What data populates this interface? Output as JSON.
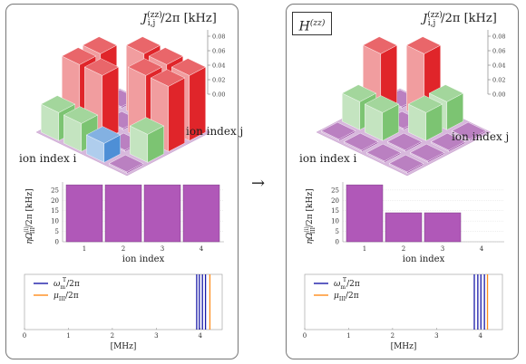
{
  "zz_label": "J",
  "zz_sub": "i,j",
  "zz_sup": "(zz)",
  "zz_unit": "/2π [kHz]",
  "hamiltonian_base": "H",
  "hamiltonian_sup": "(zz)",
  "ion_i_label": "ion index i",
  "ion_j_label": "ion index j",
  "z_ticks": [
    "0.08",
    "0.06",
    "0.04",
    "0.02",
    "0.00"
  ],
  "arrow": "→",
  "colors": {
    "bar": "#b058b8",
    "red": "#e0252a",
    "green": "#7cc472",
    "blue": "#4e8fd6",
    "purple": "#9c4aa6",
    "omega": "#1a1aa8",
    "mu": "#ff8c1a"
  },
  "rabi_ylabel_base": "ηΩ",
  "rabi_ylabel_sup": "(i)",
  "rabi_ylabel_sub": "III",
  "rabi_ylabel_rest": "/2π [kHz]",
  "rabi_yticks": [
    "25",
    "20",
    "15",
    "10",
    "5",
    "0"
  ],
  "rabi_xlabel": "ion index",
  "left_rabi": {
    "chart_data": {
      "type": "bar",
      "categories": [
        "1",
        "2",
        "3",
        "4"
      ],
      "values": [
        27.5,
        27.5,
        27.5,
        27.5
      ],
      "ylim": [
        0,
        28
      ],
      "ylabel": "ηΩ(i)III/2π [kHz]",
      "xlabel": "ion index"
    }
  },
  "right_rabi": {
    "chart_data": {
      "type": "bar",
      "categories": [
        "1",
        "2",
        "3",
        "4"
      ],
      "values": [
        27.5,
        14,
        14,
        0
      ],
      "ylim": [
        0,
        28
      ],
      "ylabel": "ηΩ(i)III/2π [kHz]",
      "xlabel": "ion index"
    }
  },
  "freq_legend_omega_base": "ω",
  "freq_legend_omega_sub": "m",
  "freq_legend_omega_sup": "T",
  "freq_legend_omega_rest": "/2π",
  "freq_legend_mu_base": "μ",
  "freq_legend_mu_sub": "III",
  "freq_legend_mu_rest": "/2π",
  "freq_xlabel": "[MHz]",
  "freq_ticks": [
    "0",
    "1",
    "2",
    "3",
    "4"
  ],
  "left_freq": {
    "omega_lines": [
      3.92,
      3.98,
      4.05,
      4.12
    ],
    "mu_lines": [
      4.22
    ],
    "xlim": [
      0,
      4.5
    ]
  },
  "right_freq": {
    "omega_lines": [
      3.86,
      3.94,
      4.01,
      4.09
    ],
    "mu_lines": [
      4.16
    ],
    "xlim": [
      0,
      4.5
    ]
  },
  "left_bars3d": {
    "bars": [
      {
        "i": 0,
        "j": 0,
        "v": 0.0,
        "c": "purple"
      },
      {
        "i": 0,
        "j": 1,
        "v": 0.072,
        "c": "red"
      },
      {
        "i": 0,
        "j": 2,
        "v": 0.072,
        "c": "red"
      },
      {
        "i": 0,
        "j": 3,
        "v": 0.072,
        "c": "red"
      },
      {
        "i": 1,
        "j": 0,
        "v": 0.072,
        "c": "red"
      },
      {
        "i": 1,
        "j": 1,
        "v": 0.0,
        "c": "purple"
      },
      {
        "i": 1,
        "j": 2,
        "v": 0.072,
        "c": "red"
      },
      {
        "i": 1,
        "j": 3,
        "v": 0.072,
        "c": "red"
      },
      {
        "i": 2,
        "j": 0,
        "v": 0.072,
        "c": "red"
      },
      {
        "i": 2,
        "j": 1,
        "v": 0.072,
        "c": "red"
      },
      {
        "i": 2,
        "j": 2,
        "v": 0.0,
        "c": "purple"
      },
      {
        "i": 2,
        "j": 3,
        "v": 0.031,
        "c": "green"
      },
      {
        "i": 3,
        "j": 0,
        "v": 0.031,
        "c": "green"
      },
      {
        "i": 3,
        "j": 1,
        "v": 0.031,
        "c": "green"
      },
      {
        "i": 3,
        "j": 2,
        "v": 0.021,
        "c": "blue"
      },
      {
        "i": 3,
        "j": 3,
        "v": 0.0,
        "c": "purple"
      }
    ]
  },
  "right_bars3d": {
    "bars": [
      {
        "i": 0,
        "j": 0,
        "v": 0.0,
        "c": "purple"
      },
      {
        "i": 0,
        "j": 1,
        "v": 0.072,
        "c": "red"
      },
      {
        "i": 0,
        "j": 2,
        "v": 0.031,
        "c": "green"
      },
      {
        "i": 0,
        "j": 3,
        "v": 0.0,
        "c": "purple"
      },
      {
        "i": 1,
        "j": 0,
        "v": 0.072,
        "c": "red"
      },
      {
        "i": 1,
        "j": 1,
        "v": 0.0,
        "c": "purple"
      },
      {
        "i": 1,
        "j": 2,
        "v": 0.031,
        "c": "green"
      },
      {
        "i": 1,
        "j": 3,
        "v": 0.0,
        "c": "purple"
      },
      {
        "i": 2,
        "j": 0,
        "v": 0.031,
        "c": "green"
      },
      {
        "i": 2,
        "j": 1,
        "v": 0.031,
        "c": "green"
      },
      {
        "i": 2,
        "j": 2,
        "v": 0.0,
        "c": "purple"
      },
      {
        "i": 2,
        "j": 3,
        "v": 0.0,
        "c": "purple"
      },
      {
        "i": 3,
        "j": 0,
        "v": 0.0,
        "c": "purple"
      },
      {
        "i": 3,
        "j": 1,
        "v": 0.0,
        "c": "purple"
      },
      {
        "i": 3,
        "j": 2,
        "v": 0.0,
        "c": "purple"
      },
      {
        "i": 3,
        "j": 3,
        "v": 0.0,
        "c": "purple"
      }
    ]
  }
}
